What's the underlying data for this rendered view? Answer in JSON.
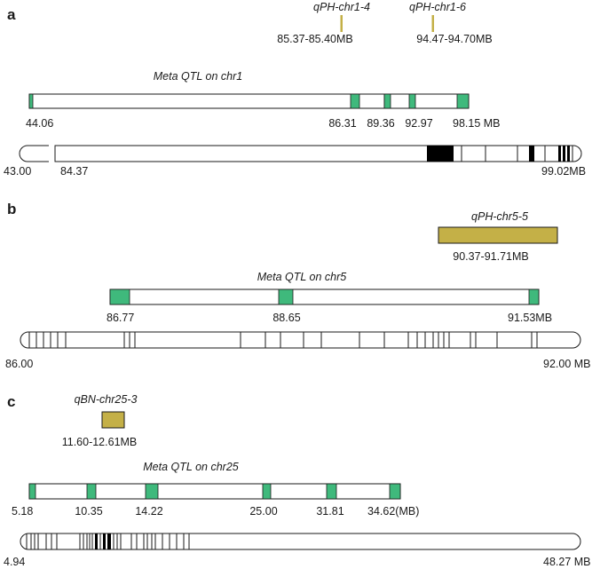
{
  "colors": {
    "marker": "#3fb97c",
    "qtl_bar": "#c4b047",
    "outline": "#1a1a1a",
    "band": "#000000"
  },
  "panels": [
    {
      "letter": "a",
      "qtls": [
        {
          "name": "qPH-chr1-4",
          "range": "85.37-85.40MB"
        },
        {
          "name": "qPH-chr1-6",
          "range": "94.47-94.70MB"
        }
      ],
      "meta_title": "Meta QTL on chr1",
      "meta_labels": [
        "44.06",
        "86.31",
        "89.36",
        "92.97",
        "98.15 MB"
      ],
      "chrom_labels": [
        "43.00",
        "84.37",
        "99.02MB"
      ]
    },
    {
      "letter": "b",
      "qtls": [
        {
          "name": "qPH-chr5-5",
          "range": "90.37-91.71MB"
        }
      ],
      "meta_title": "Meta QTL on chr5",
      "meta_labels": [
        "86.77",
        "88.65",
        "91.53MB"
      ],
      "chrom_labels": [
        "86.00",
        "92.00 MB"
      ]
    },
    {
      "letter": "c",
      "qtls": [
        {
          "name": "qBN-chr25-3",
          "range": "11.60-12.61MB"
        }
      ],
      "meta_title": "Meta QTL on chr25",
      "meta_labels": [
        "5.18",
        "10.35",
        "14.22",
        "25.00",
        "31.81",
        "34.62(MB)"
      ],
      "chrom_labels": [
        "4.94",
        "48.27 MB"
      ]
    }
  ]
}
